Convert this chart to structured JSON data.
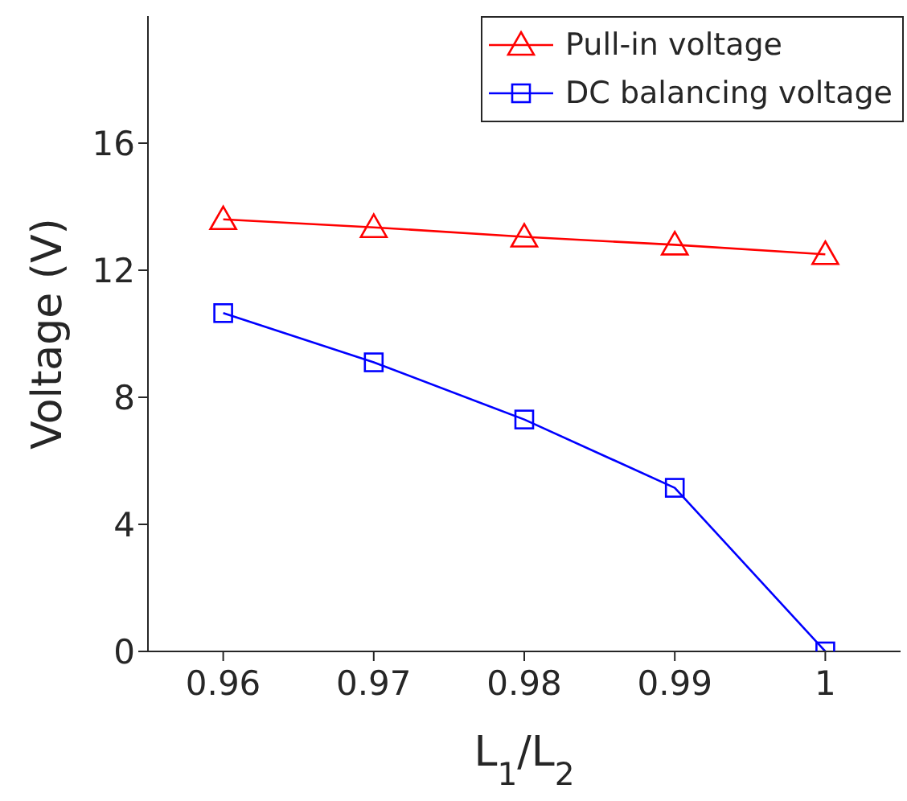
{
  "chart_data": {
    "type": "line",
    "xlabel": "L$_{1}$/L$_{2}$",
    "ylabel": "Voltage (V)",
    "x": [
      0.96,
      0.97,
      0.98,
      0.99,
      1
    ],
    "xlim": [
      0.955,
      1.005
    ],
    "xticks": [
      0.96,
      0.97,
      0.98,
      0.99,
      1
    ],
    "ylim": [
      0,
      20
    ],
    "yticks": [
      0,
      4,
      8,
      12,
      16
    ],
    "grid": false,
    "legend": "top right",
    "series": [
      {
        "name": "Pull-in voltage",
        "color": "#ff0000",
        "marker": "triangle",
        "values": [
          13.6,
          13.35,
          13.05,
          12.8,
          12.5
        ]
      },
      {
        "name": "DC balancing voltage",
        "color": "#0000ff",
        "marker": "square",
        "values": [
          10.65,
          9.1,
          7.3,
          5.15,
          0
        ]
      }
    ]
  }
}
